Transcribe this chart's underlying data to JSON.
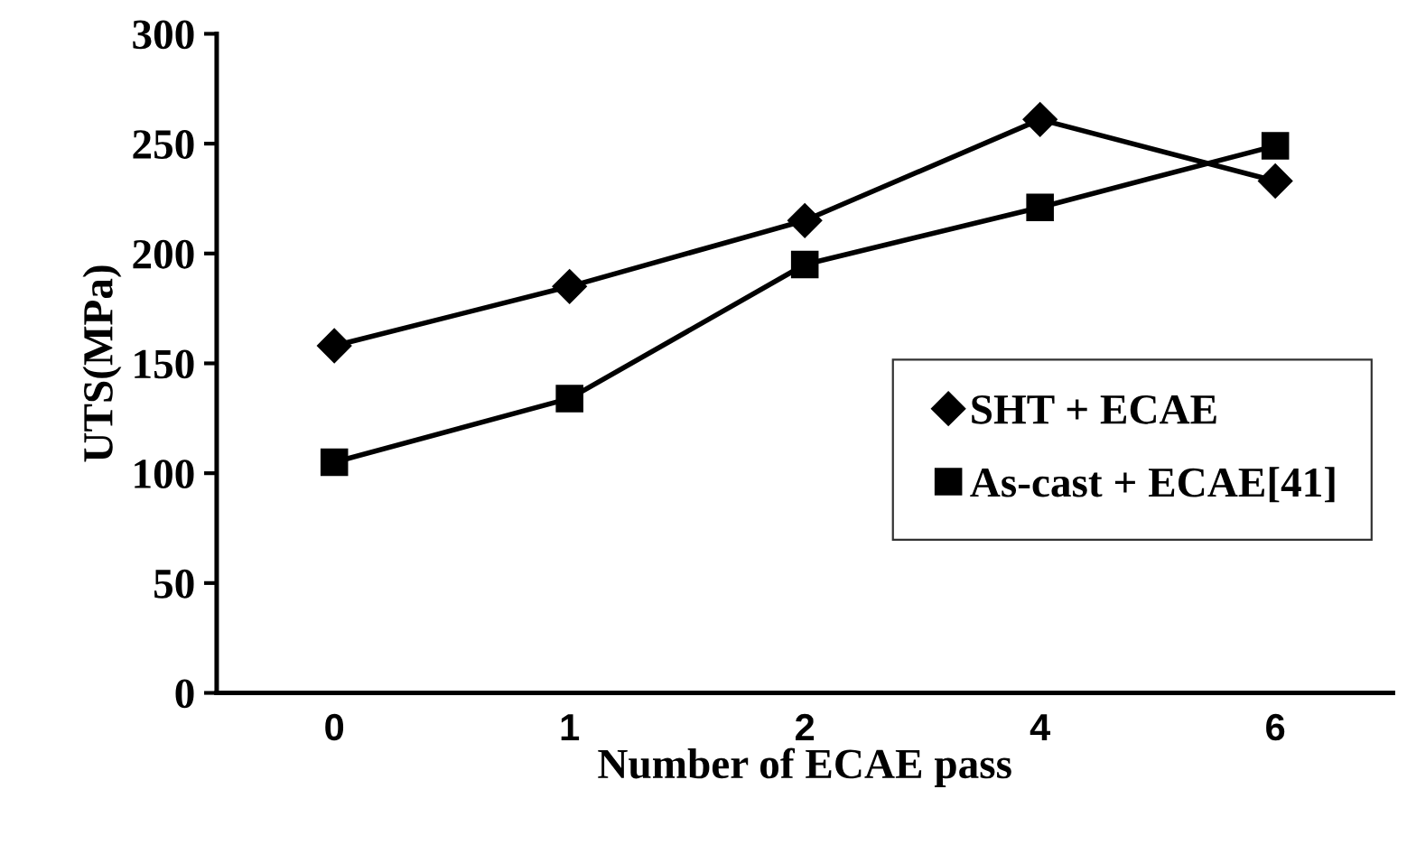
{
  "chart_data": {
    "type": "line",
    "xlabel": "Number of ECAE pass",
    "ylabel": "UTS(MPa)",
    "categories": [
      "0",
      "1",
      "2",
      "4",
      "6"
    ],
    "series": [
      {
        "name": "SHT + ECAE",
        "color": "#000000",
        "marker": "diamond",
        "values": [
          158,
          185,
          215,
          261,
          233
        ]
      },
      {
        "name": "As-cast + ECAE[41]",
        "color": "#000000",
        "marker": "square",
        "values": [
          105,
          134,
          195,
          221,
          249
        ]
      }
    ],
    "ylim": [
      0,
      300
    ],
    "yticks": [
      0,
      50,
      100,
      150,
      200,
      250,
      300
    ],
    "grid": false,
    "legend": "right",
    "line_style": "solid"
  }
}
